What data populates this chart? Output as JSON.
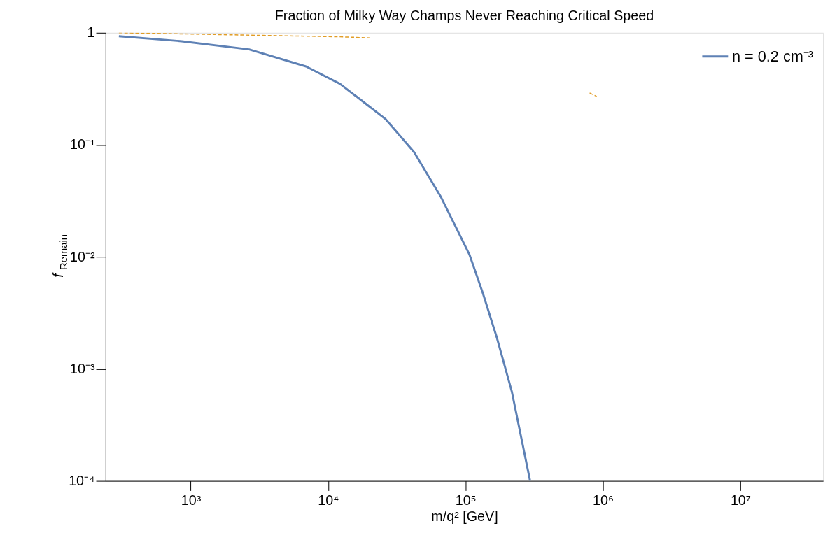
{
  "chart_data": {
    "type": "line",
    "title": "Fraction of Milky Way Champs Never Reaching Critical Speed",
    "xlabel": "m/q² [GeV]",
    "ylabel": "f$_{Remain}$",
    "log": "xy",
    "grid": false,
    "legend": "top right",
    "line_style": "solid",
    "marker": "none",
    "xlim": [
      240,
      40000000
    ],
    "ylim": [
      0.0001,
      1
    ],
    "xticks": [
      {
        "value": 1000,
        "label": "10³"
      },
      {
        "value": 10000,
        "label": "10⁴"
      },
      {
        "value": 100000,
        "label": "10⁵"
      },
      {
        "value": 1000000,
        "label": "10⁶"
      },
      {
        "value": 10000000,
        "label": "10⁷"
      }
    ],
    "yticks": [
      {
        "value": 0.0001,
        "label": "10⁻⁴"
      },
      {
        "value": 0.001,
        "label": "10⁻³"
      },
      {
        "value": 0.01,
        "label": "10⁻²"
      },
      {
        "value": 0.1,
        "label": "10⁻¹"
      },
      1
    ],
    "series": [
      {
        "name": "n = 0.2 cm⁻³",
        "color": "#5e81b5",
        "x": [
          300,
          860,
          2660,
          6900,
          12200,
          17400,
          26100,
          42200,
          66400,
          107000,
          134000,
          169000,
          217000,
          295000
        ],
        "values": [
          0.93,
          0.84,
          0.71,
          0.5,
          0.35,
          0.25,
          0.17,
          0.086,
          0.034,
          0.0104,
          0.0047,
          0.0019,
          0.00063,
          0.0001
        ]
      },
      {
        "color": "#e19c24",
        "line_style": "dashed",
        "x": [
          300,
          12000,
          20000,
          50000,
          800000,
          900000
        ],
        "values": [
          1.0,
          0.92,
          0.9,
          null,
          0.29,
          0.27
        ]
      }
    ]
  }
}
